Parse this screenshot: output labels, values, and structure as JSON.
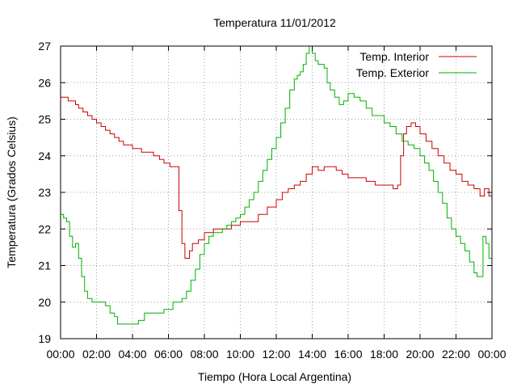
{
  "chart_data": {
    "type": "line",
    "title": "Temperatura 11/01/2012",
    "xlabel": "Tiempo (Hora Local Argentina)",
    "ylabel": "Temperatura (Grados Celsius)",
    "xlim": [
      "00:00",
      "24:00"
    ],
    "ylim": [
      19,
      27
    ],
    "grid": true,
    "legend_position": "top-right",
    "x_ticks": [
      "00:00",
      "02:00",
      "04:00",
      "06:00",
      "08:00",
      "10:00",
      "12:00",
      "14:00",
      "16:00",
      "18:00",
      "20:00",
      "22:00",
      "00:00"
    ],
    "y_ticks": [
      19,
      20,
      21,
      22,
      23,
      24,
      25,
      26,
      27
    ],
    "series": [
      {
        "name": "Temp. Interior",
        "color": "#cc0000",
        "points": [
          [
            "00:00",
            25.6
          ],
          [
            "00:20",
            25.6
          ],
          [
            "00:25",
            25.5
          ],
          [
            "00:40",
            25.5
          ],
          [
            "00:50",
            25.4
          ],
          [
            "01:00",
            25.3
          ],
          [
            "01:15",
            25.2
          ],
          [
            "01:30",
            25.1
          ],
          [
            "01:45",
            25.0
          ],
          [
            "02:00",
            24.9
          ],
          [
            "02:15",
            24.8
          ],
          [
            "02:30",
            24.7
          ],
          [
            "02:45",
            24.6
          ],
          [
            "03:00",
            24.5
          ],
          [
            "03:15",
            24.4
          ],
          [
            "03:30",
            24.3
          ],
          [
            "03:45",
            24.3
          ],
          [
            "04:00",
            24.2
          ],
          [
            "04:20",
            24.2
          ],
          [
            "04:30",
            24.1
          ],
          [
            "05:00",
            24.1
          ],
          [
            "05:10",
            24.0
          ],
          [
            "05:30",
            23.9
          ],
          [
            "05:45",
            23.8
          ],
          [
            "06:00",
            23.8
          ],
          [
            "06:05",
            23.7
          ],
          [
            "06:20",
            23.7
          ],
          [
            "06:28",
            23.7
          ],
          [
            "06:35",
            22.5
          ],
          [
            "06:45",
            21.6
          ],
          [
            "06:55",
            21.2
          ],
          [
            "07:00",
            21.2
          ],
          [
            "07:10",
            21.4
          ],
          [
            "07:20",
            21.6
          ],
          [
            "07:40",
            21.7
          ],
          [
            "08:00",
            21.9
          ],
          [
            "08:30",
            22.0
          ],
          [
            "09:30",
            22.1
          ],
          [
            "10:00",
            22.2
          ],
          [
            "10:30",
            22.2
          ],
          [
            "11:00",
            22.4
          ],
          [
            "11:30",
            22.6
          ],
          [
            "12:00",
            22.8
          ],
          [
            "12:20",
            23.0
          ],
          [
            "12:40",
            23.1
          ],
          [
            "13:00",
            23.2
          ],
          [
            "13:20",
            23.3
          ],
          [
            "13:40",
            23.5
          ],
          [
            "14:00",
            23.7
          ],
          [
            "14:20",
            23.6
          ],
          [
            "14:40",
            23.7
          ],
          [
            "15:00",
            23.7
          ],
          [
            "15:20",
            23.6
          ],
          [
            "15:40",
            23.5
          ],
          [
            "16:00",
            23.4
          ],
          [
            "16:40",
            23.4
          ],
          [
            "17:00",
            23.3
          ],
          [
            "17:30",
            23.2
          ],
          [
            "18:00",
            23.2
          ],
          [
            "18:30",
            23.1
          ],
          [
            "18:45",
            23.2
          ],
          [
            "18:55",
            24.0
          ],
          [
            "19:05",
            24.6
          ],
          [
            "19:15",
            24.8
          ],
          [
            "19:30",
            24.9
          ],
          [
            "19:45",
            24.8
          ],
          [
            "20:00",
            24.6
          ],
          [
            "20:20",
            24.4
          ],
          [
            "20:40",
            24.2
          ],
          [
            "21:00",
            24.0
          ],
          [
            "21:20",
            23.8
          ],
          [
            "21:40",
            23.6
          ],
          [
            "22:00",
            23.5
          ],
          [
            "22:20",
            23.3
          ],
          [
            "22:40",
            23.2
          ],
          [
            "23:00",
            23.1
          ],
          [
            "23:15",
            23.1
          ],
          [
            "23:20",
            22.9
          ],
          [
            "23:30",
            22.9
          ],
          [
            "23:35",
            23.1
          ],
          [
            "23:45",
            23.1
          ],
          [
            "23:50",
            22.9
          ],
          [
            "24:00",
            22.9
          ]
        ]
      },
      {
        "name": "Temp. Exterior",
        "color": "#00b000",
        "points": [
          [
            "00:00",
            22.4
          ],
          [
            "00:10",
            22.3
          ],
          [
            "00:20",
            22.2
          ],
          [
            "00:30",
            21.8
          ],
          [
            "00:40",
            21.5
          ],
          [
            "00:50",
            21.6
          ],
          [
            "01:00",
            21.2
          ],
          [
            "01:10",
            20.7
          ],
          [
            "01:20",
            20.3
          ],
          [
            "01:30",
            20.1
          ],
          [
            "01:45",
            20.0
          ],
          [
            "02:00",
            20.0
          ],
          [
            "02:30",
            19.9
          ],
          [
            "02:45",
            19.7
          ],
          [
            "03:00",
            19.6
          ],
          [
            "03:10",
            19.4
          ],
          [
            "03:30",
            19.4
          ],
          [
            "04:00",
            19.4
          ],
          [
            "04:20",
            19.5
          ],
          [
            "04:30",
            19.5
          ],
          [
            "04:40",
            19.7
          ],
          [
            "05:00",
            19.7
          ],
          [
            "05:30",
            19.7
          ],
          [
            "05:45",
            19.8
          ],
          [
            "06:00",
            19.8
          ],
          [
            "06:15",
            20.0
          ],
          [
            "06:30",
            20.0
          ],
          [
            "06:45",
            20.1
          ],
          [
            "07:00",
            20.3
          ],
          [
            "07:15",
            20.6
          ],
          [
            "07:30",
            20.9
          ],
          [
            "07:45",
            21.3
          ],
          [
            "08:00",
            21.6
          ],
          [
            "08:15",
            21.8
          ],
          [
            "08:30",
            21.9
          ],
          [
            "09:00",
            22.0
          ],
          [
            "09:15",
            22.1
          ],
          [
            "09:30",
            22.2
          ],
          [
            "09:45",
            22.3
          ],
          [
            "10:00",
            22.4
          ],
          [
            "10:15",
            22.6
          ],
          [
            "10:30",
            22.8
          ],
          [
            "10:45",
            23.0
          ],
          [
            "11:00",
            23.3
          ],
          [
            "11:15",
            23.6
          ],
          [
            "11:30",
            23.9
          ],
          [
            "11:45",
            24.2
          ],
          [
            "12:00",
            24.5
          ],
          [
            "12:15",
            24.9
          ],
          [
            "12:30",
            25.3
          ],
          [
            "12:45",
            25.8
          ],
          [
            "13:00",
            26.1
          ],
          [
            "13:10",
            26.2
          ],
          [
            "13:20",
            26.3
          ],
          [
            "13:30",
            26.5
          ],
          [
            "13:40",
            26.8
          ],
          [
            "13:50",
            27.0
          ],
          [
            "14:00",
            26.8
          ],
          [
            "14:10",
            26.6
          ],
          [
            "14:20",
            26.5
          ],
          [
            "14:30",
            26.5
          ],
          [
            "14:40",
            26.4
          ],
          [
            "14:50",
            26.0
          ],
          [
            "15:00",
            25.8
          ],
          [
            "15:15",
            25.6
          ],
          [
            "15:30",
            25.4
          ],
          [
            "15:45",
            25.5
          ],
          [
            "16:00",
            25.7
          ],
          [
            "16:20",
            25.6
          ],
          [
            "16:30",
            25.6
          ],
          [
            "16:40",
            25.5
          ],
          [
            "17:00",
            25.3
          ],
          [
            "17:20",
            25.1
          ],
          [
            "17:40",
            25.1
          ],
          [
            "18:00",
            24.9
          ],
          [
            "18:20",
            24.8
          ],
          [
            "18:40",
            24.6
          ],
          [
            "19:00",
            24.4
          ],
          [
            "19:20",
            24.3
          ],
          [
            "19:40",
            24.2
          ],
          [
            "20:00",
            24.0
          ],
          [
            "20:15",
            23.8
          ],
          [
            "20:30",
            23.6
          ],
          [
            "20:45",
            23.3
          ],
          [
            "21:00",
            23.0
          ],
          [
            "21:15",
            22.7
          ],
          [
            "21:30",
            22.3
          ],
          [
            "21:45",
            22.0
          ],
          [
            "22:00",
            21.8
          ],
          [
            "22:15",
            21.6
          ],
          [
            "22:30",
            21.4
          ],
          [
            "22:45",
            21.1
          ],
          [
            "23:00",
            20.8
          ],
          [
            "23:10",
            20.7
          ],
          [
            "23:20",
            20.7
          ],
          [
            "23:30",
            21.8
          ],
          [
            "23:40",
            21.6
          ],
          [
            "23:50",
            21.2
          ],
          [
            "24:00",
            21.0
          ]
        ]
      }
    ]
  }
}
